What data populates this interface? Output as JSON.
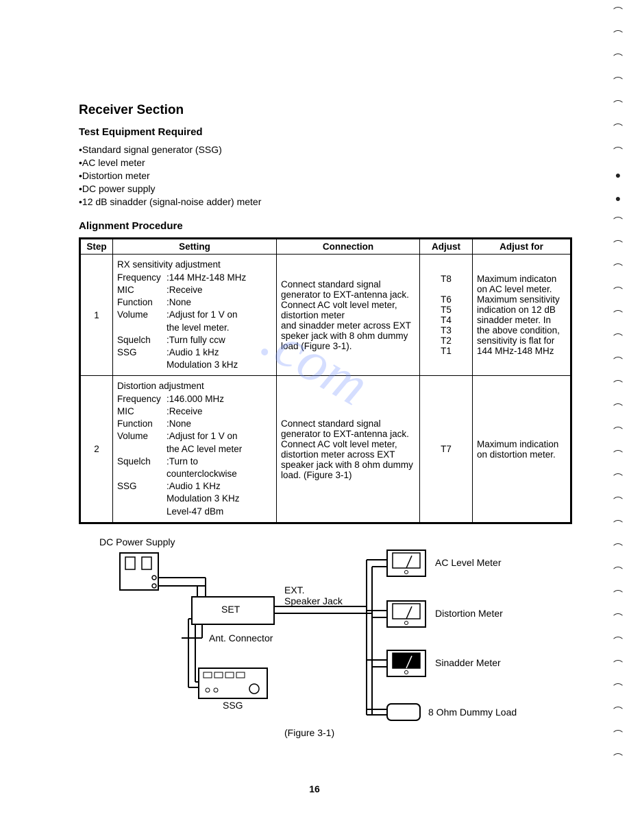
{
  "heading": "Receiver Section",
  "subhead1": "Test Equipment Required",
  "equipment": [
    "•Standard signal generator (SSG)",
    "•AC level meter",
    "•Distortion meter",
    "•DC power supply",
    "•12 dB sinadder (signal-noise adder) meter"
  ],
  "subhead2": "Alignment Procedure",
  "table": {
    "headers": {
      "step": "Step",
      "setting": "Setting",
      "connection": "Connection",
      "adjust": "Adjust",
      "adjustfor": "Adjust for"
    },
    "col_widths": {
      "step": "38px",
      "setting": "230px",
      "connection": "200px",
      "adjust": "68px",
      "adjustfor": "160px"
    },
    "rows": [
      {
        "step": "1",
        "setting_title": "RX sensitivity adjustment",
        "settings": [
          {
            "k": "Frequency",
            "v": ":144 MHz-148 MHz"
          },
          {
            "k": "MIC",
            "v": ":Receive"
          },
          {
            "k": "Function",
            "v": ":None"
          },
          {
            "k": "Volume",
            "v": ":Adjust for 1 V on"
          },
          {
            "k": "",
            "v": " the level meter."
          },
          {
            "k": "Squelch",
            "v": ":Turn fully ccw"
          },
          {
            "k": "SSG",
            "v": ":Audio 1 kHz"
          },
          {
            "k": "",
            "v": " Modulation 3 kHz"
          }
        ],
        "connection": "Connect standard signal generator to EXT-antenna jack.\nConnect AC volt level meter, distortion meter\nand sinadder meter across EXT speker jack with 8 ohm dummy load  (Figure 3-1).",
        "adjust": "T8\n\nT6\nT5\nT4\nT3\nT2\nT1",
        "adjustfor": "Maximum indicaton on AC level meter. Maximum sensitivity indication on 12 dB sinadder meter. In the above condition, sensitivity is flat for 144 MHz-148 MHz"
      },
      {
        "step": "2",
        "setting_title": "Distortion adjustment",
        "settings": [
          {
            "k": "Frequency",
            "v": ":146.000 MHz"
          },
          {
            "k": "MIC",
            "v": ":Receive"
          },
          {
            "k": "Function",
            "v": ":None"
          },
          {
            "k": "Volume",
            "v": ":Adjust for 1 V on"
          },
          {
            "k": "",
            "v": " the AC level meter"
          },
          {
            "k": "Squelch",
            "v": ":Turn to"
          },
          {
            "k": "",
            "v": " counterclockwise"
          },
          {
            "k": "SSG",
            "v": ":Audio 1 KHz"
          },
          {
            "k": "",
            "v": " Modulation 3 KHz"
          },
          {
            "k": "",
            "v": " Level-47 dBm"
          }
        ],
        "connection": "Connect standard signal generator to EXT-antenna jack. Connect AC volt level meter, distortion meter across EXT speaker jack with 8 ohm dummy load. (Figure 3-1)",
        "adjust": "T7",
        "adjustfor": "Maximum indication on distortion meter."
      }
    ]
  },
  "diagram": {
    "title": "DC Power Supply",
    "set_label": "SET",
    "ext_label": "EXT.\nSpeaker Jack",
    "ant_label": "Ant. Connector",
    "ssg_label": "SSG",
    "ac_label": "AC Level Meter",
    "dist_label": "Distortion Meter",
    "sin_label": "Sinadder Meter",
    "dummy_label": "8 Ohm Dummy Load",
    "figure_caption": "(Figure 3-1)",
    "line_color": "#000000",
    "box_fill": "#ffffff",
    "gauge_bg": "#ffffff"
  },
  "watermark": ".com",
  "page_number": "16",
  "colors": {
    "text": "#000000",
    "bg": "#ffffff",
    "wm": "#6a8cff"
  }
}
